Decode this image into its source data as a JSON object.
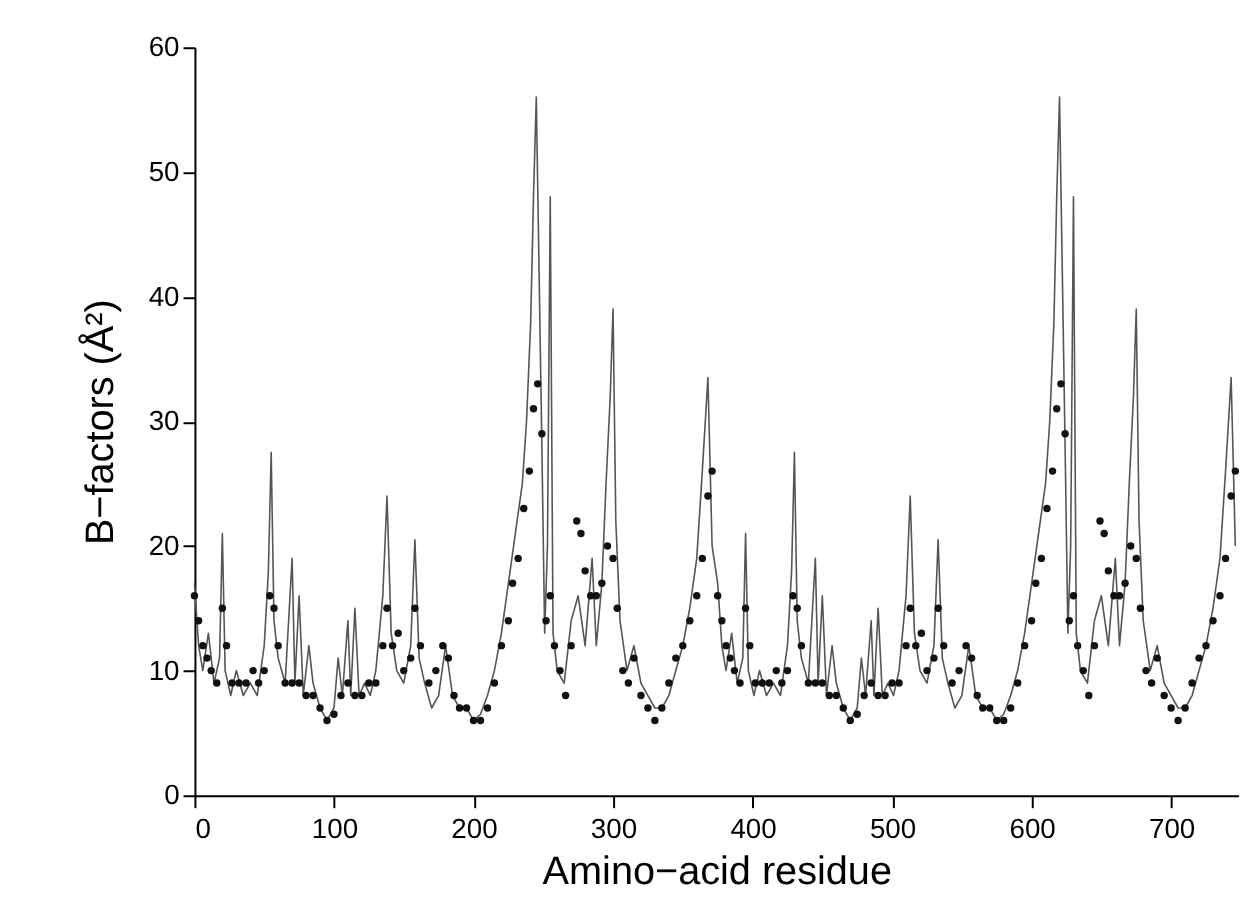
{
  "chart_data": {
    "type": "line",
    "xlabel": "Amino−acid residue",
    "ylabel": "B−factors (Å²)",
    "xlim": [
      0,
      748
    ],
    "xticks": [
      0,
      100,
      200,
      300,
      400,
      500,
      600,
      700
    ],
    "ylim": [
      0,
      60
    ],
    "yticks": [
      0,
      10,
      20,
      30,
      40,
      50,
      60
    ],
    "grid": false,
    "series": [
      {
        "color": "#555555",
        "line_style": "solid",
        "x": [
          0,
          3,
          6,
          10,
          14,
          18,
          20,
          22,
          26,
          30,
          35,
          40,
          45,
          50,
          53,
          55,
          57,
          60,
          65,
          70,
          72,
          75,
          78,
          82,
          85,
          90,
          95,
          100,
          103,
          106,
          110,
          112,
          115,
          118,
          122,
          126,
          130,
          135,
          138,
          141,
          145,
          150,
          155,
          158,
          161,
          165,
          170,
          175,
          180,
          185,
          190,
          195,
          200,
          205,
          210,
          215,
          220,
          225,
          230,
          235,
          238,
          241,
          243,
          245,
          247,
          249,
          251,
          253,
          255,
          257,
          260,
          265,
          270,
          275,
          280,
          285,
          288,
          292,
          295,
          298,
          300,
          302,
          305,
          310,
          315,
          320,
          325,
          330,
          335,
          340,
          345,
          350,
          355,
          360,
          364,
          368,
          371,
          375,
          378,
          381,
          385,
          389,
          393,
          395,
          397,
          401,
          405,
          410,
          415,
          420,
          425,
          428,
          430,
          432,
          435,
          440,
          445,
          447,
          450,
          453,
          457,
          460,
          465,
          470,
          475,
          478,
          481,
          485,
          487,
          490,
          493,
          497,
          501,
          505,
          510,
          513,
          516,
          520,
          525,
          530,
          533,
          536,
          540,
          545,
          550,
          555,
          560,
          565,
          570,
          575,
          580,
          585,
          590,
          595,
          600,
          605,
          610,
          613,
          616,
          618,
          620,
          622,
          624,
          626,
          628,
          630,
          632,
          635,
          640,
          645,
          650,
          655,
          660,
          663,
          667,
          670,
          673,
          675,
          677,
          680,
          685,
          690,
          695,
          700,
          705,
          710,
          715,
          720,
          725,
          730,
          735,
          739,
          743,
          746
        ],
        "values": [
          17,
          12,
          10,
          13,
          9,
          11,
          21,
          10,
          8,
          10,
          8,
          9,
          8,
          12,
          18,
          27.5,
          14,
          11,
          9,
          19,
          9,
          16,
          8,
          12,
          9,
          7,
          6,
          7,
          11,
          8,
          14,
          8,
          15,
          8,
          9,
          8,
          10,
          16,
          24,
          13,
          10,
          9,
          12,
          20.5,
          11,
          9,
          7,
          8,
          12,
          8,
          7,
          7,
          6,
          6.5,
          8,
          10,
          13,
          17,
          21,
          25,
          30,
          38,
          48,
          56,
          42,
          28,
          13,
          20,
          48,
          13,
          10,
          9,
          14,
          16,
          12,
          19,
          12,
          17,
          25,
          32,
          39,
          22,
          14,
          10,
          12,
          9,
          8,
          7,
          7,
          8,
          10,
          12,
          15,
          19,
          26,
          33.5,
          20,
          17,
          12,
          10,
          13,
          9,
          11,
          21,
          10,
          8,
          10,
          8,
          9,
          8,
          12,
          18,
          27.5,
          14,
          11,
          9,
          19,
          9,
          16,
          8,
          12,
          9,
          7,
          6,
          7,
          11,
          8,
          14,
          8,
          15,
          8,
          9,
          8,
          10,
          16,
          24,
          13,
          10,
          9,
          12,
          20.5,
          11,
          9,
          7,
          8,
          12,
          8,
          7,
          7,
          6,
          6.5,
          8,
          10,
          13,
          17,
          21,
          25,
          30,
          38,
          48,
          56,
          42,
          28,
          13,
          20,
          48,
          13,
          10,
          9,
          14,
          16,
          12,
          19,
          12,
          17,
          25,
          32,
          39,
          22,
          14,
          10,
          12,
          9,
          8,
          7,
          7,
          8,
          10,
          12,
          15,
          19,
          26,
          33.5,
          20
        ]
      },
      {
        "type": "scatter",
        "color": "#111111",
        "marker": "circle",
        "x": [
          0,
          3,
          6,
          9,
          12,
          16,
          20,
          23,
          27,
          32,
          37,
          42,
          46,
          50,
          54,
          57,
          60,
          65,
          70,
          75,
          80,
          85,
          90,
          95,
          100,
          105,
          110,
          115,
          120,
          125,
          130,
          135,
          138,
          142,
          146,
          150,
          155,
          158,
          162,
          168,
          173,
          178,
          182,
          186,
          190,
          195,
          200,
          205,
          210,
          215,
          220,
          225,
          228,
          232,
          236,
          240,
          243,
          246,
          249,
          252,
          255,
          258,
          262,
          266,
          270,
          274,
          277,
          280,
          284,
          288,
          292,
          296,
          300,
          303,
          307,
          311,
          315,
          320,
          325,
          330,
          335,
          340,
          345,
          350,
          355,
          360,
          364,
          368,
          371,
          375,
          378,
          381,
          384,
          387,
          391,
          395,
          398,
          402,
          407,
          412,
          417,
          421,
          425,
          429,
          432,
          435,
          440,
          445,
          450,
          455,
          460,
          465,
          470,
          475,
          480,
          485,
          490,
          495,
          500,
          505,
          510,
          513,
          517,
          521,
          525,
          530,
          533,
          537,
          543,
          548,
          553,
          557,
          561,
          565,
          570,
          575,
          580,
          585,
          590,
          595,
          600,
          603,
          607,
          611,
          615,
          618,
          621,
          624,
          627,
          630,
          633,
          637,
          641,
          645,
          649,
          652,
          655,
          659,
          663,
          667,
          671,
          675,
          678,
          682,
          686,
          690,
          695,
          700,
          705,
          710,
          715,
          720,
          725,
          730,
          735,
          739,
          743,
          746
        ],
        "values": [
          16,
          14,
          12,
          11,
          10,
          9,
          15,
          12,
          9,
          9,
          9,
          10,
          9,
          10,
          16,
          15,
          12,
          9,
          9,
          9,
          8,
          8,
          7,
          6,
          6.5,
          8,
          9,
          8,
          8,
          9,
          9,
          12,
          15,
          12,
          13,
          10,
          11,
          15,
          12,
          9,
          10,
          12,
          11,
          8,
          7,
          7,
          6,
          6,
          7,
          9,
          12,
          14,
          17,
          19,
          23,
          26,
          31,
          33,
          29,
          14,
          16,
          12,
          10,
          8,
          12,
          22,
          21,
          18,
          16,
          16,
          17,
          20,
          19,
          15,
          10,
          9,
          11,
          8,
          7,
          6,
          7,
          9,
          11,
          12,
          14,
          16,
          19,
          24,
          26,
          16,
          14,
          12,
          11,
          10,
          9,
          15,
          12,
          9,
          9,
          9,
          10,
          9,
          10,
          16,
          15,
          12,
          9,
          9,
          9,
          8,
          8,
          7,
          6,
          6.5,
          8,
          9,
          8,
          8,
          9,
          9,
          12,
          15,
          12,
          13,
          10,
          11,
          15,
          12,
          9,
          10,
          12,
          11,
          8,
          7,
          7,
          6,
          6,
          7,
          9,
          12,
          14,
          17,
          19,
          23,
          26,
          31,
          33,
          29,
          14,
          16,
          12,
          10,
          8,
          12,
          22,
          21,
          18,
          16,
          16,
          17,
          20,
          19,
          15,
          10,
          9,
          11,
          8,
          7,
          6,
          7,
          9,
          11,
          12,
          14,
          16,
          19,
          24,
          26
        ]
      }
    ]
  }
}
